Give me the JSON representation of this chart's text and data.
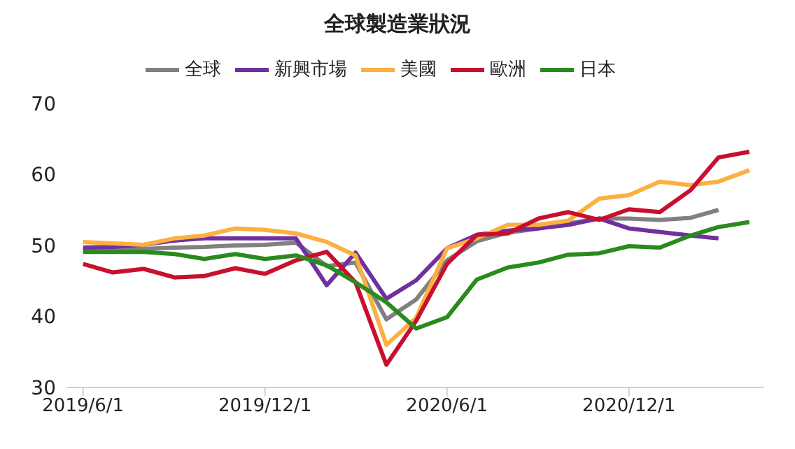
{
  "chart_data": {
    "type": "line",
    "title": "全球製造業狀況",
    "x": [
      "2019-06-01",
      "2019-07-01",
      "2019-08-01",
      "2019-09-01",
      "2019-10-01",
      "2019-11-01",
      "2019-12-01",
      "2020-01-01",
      "2020-02-01",
      "2020-03-01",
      "2020-04-01",
      "2020-05-01",
      "2020-06-01",
      "2020-07-01",
      "2020-08-01",
      "2020-09-01",
      "2020-10-01",
      "2020-11-01",
      "2020-12-01",
      "2021-01-01",
      "2021-02-01",
      "2021-03-01",
      "2021-04-01"
    ],
    "series": [
      {
        "name": "全球",
        "color": "#808080",
        "values": [
          49.4,
          49.3,
          49.5,
          49.7,
          49.8,
          50.0,
          50.1,
          50.4,
          47.1,
          47.6,
          39.6,
          42.4,
          47.9,
          50.6,
          51.8,
          52.4,
          53.1,
          53.8,
          53.8,
          53.6,
          53.9,
          55.0,
          null
        ]
      },
      {
        "name": "新興市場",
        "color": "#7030a0",
        "values": [
          49.7,
          49.8,
          50.1,
          50.7,
          51.0,
          51.0,
          51.0,
          51.0,
          44.4,
          49.0,
          42.5,
          45.1,
          49.6,
          51.5,
          52.1,
          52.4,
          52.9,
          53.8,
          52.4,
          51.9,
          51.4,
          51.0,
          null
        ]
      },
      {
        "name": "美國",
        "color": "#fbb040",
        "values": [
          50.5,
          50.3,
          50.1,
          51.0,
          51.4,
          52.4,
          52.2,
          51.7,
          50.5,
          48.6,
          36.0,
          39.8,
          49.6,
          51.0,
          52.9,
          52.9,
          53.5,
          56.6,
          57.1,
          59.0,
          58.5,
          59.0,
          60.6
        ]
      },
      {
        "name": "歐洲",
        "color": "#c8102e",
        "values": [
          47.4,
          46.2,
          46.7,
          45.5,
          45.7,
          46.8,
          46.0,
          47.9,
          49.1,
          44.8,
          33.2,
          39.4,
          47.4,
          51.5,
          51.7,
          53.8,
          54.7,
          53.6,
          55.1,
          54.7,
          57.8,
          62.4,
          63.2
        ]
      },
      {
        "name": "日本",
        "color": "#2a8a1e",
        "values": [
          49.1,
          49.1,
          49.1,
          48.8,
          48.1,
          48.8,
          48.1,
          48.6,
          47.2,
          44.8,
          42.0,
          38.3,
          39.9,
          45.2,
          46.9,
          47.6,
          48.7,
          48.9,
          49.9,
          49.7,
          51.4,
          52.6,
          53.3
        ]
      }
    ],
    "xlim": [
      "2019-05-16",
      "2021-04-16"
    ],
    "xticks": [
      {
        "value": "2019-06-01",
        "label": "2019/6/1"
      },
      {
        "value": "2019-12-01",
        "label": "2019/12/1"
      },
      {
        "value": "2020-06-01",
        "label": "2020/6/1"
      },
      {
        "value": "2020-12-01",
        "label": "2020/12/1"
      }
    ],
    "ylim": [
      30,
      70
    ],
    "yticks": [
      30,
      40,
      50,
      60,
      70
    ],
    "legend": "top",
    "grid": false,
    "marker": "none",
    "line_style": "solid"
  }
}
